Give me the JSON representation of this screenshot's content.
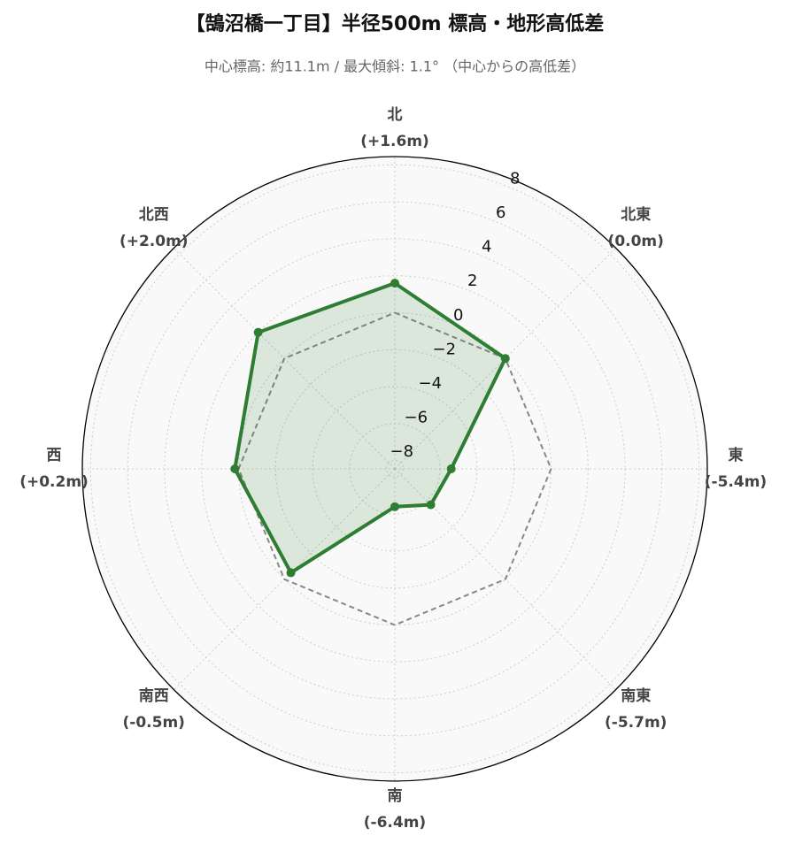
{
  "chart_data": {
    "type": "radar",
    "title": "【鵠沼橋一丁目】半径500m 標高・地形高低差",
    "subtitle": "中心標高: 約11.1m / 最大傾斜: 1.1° （中心からの高低差）",
    "categories": [
      "北",
      "北東",
      "東",
      "南東",
      "南",
      "南西",
      "西",
      "北西"
    ],
    "series": [
      {
        "color": "#2e7d32",
        "fill": true,
        "values": [
          1.6,
          0.0,
          -5.4,
          -5.7,
          -6.4,
          -0.5,
          0.2,
          2.0
        ],
        "value_labels": [
          "(+1.6m)",
          "(0.0m)",
          "(-5.4m)",
          "(-5.7m)",
          "(-6.4m)",
          "(-0.5m)",
          "(+0.2m)",
          "(+2.0m)"
        ]
      },
      {
        "color": "#888888",
        "dashed": true,
        "values": [
          0,
          0,
          0,
          0,
          0,
          0,
          0,
          0
        ]
      }
    ],
    "ylim": [
      -8.45,
      8.45
    ],
    "yticks": [
      {
        "value": -8,
        "label": "−8"
      },
      {
        "value": -6,
        "label": "−6"
      },
      {
        "value": -4,
        "label": "−4"
      },
      {
        "value": -2,
        "label": "−2"
      },
      0,
      2,
      4,
      6,
      8
    ],
    "grid": true
  }
}
